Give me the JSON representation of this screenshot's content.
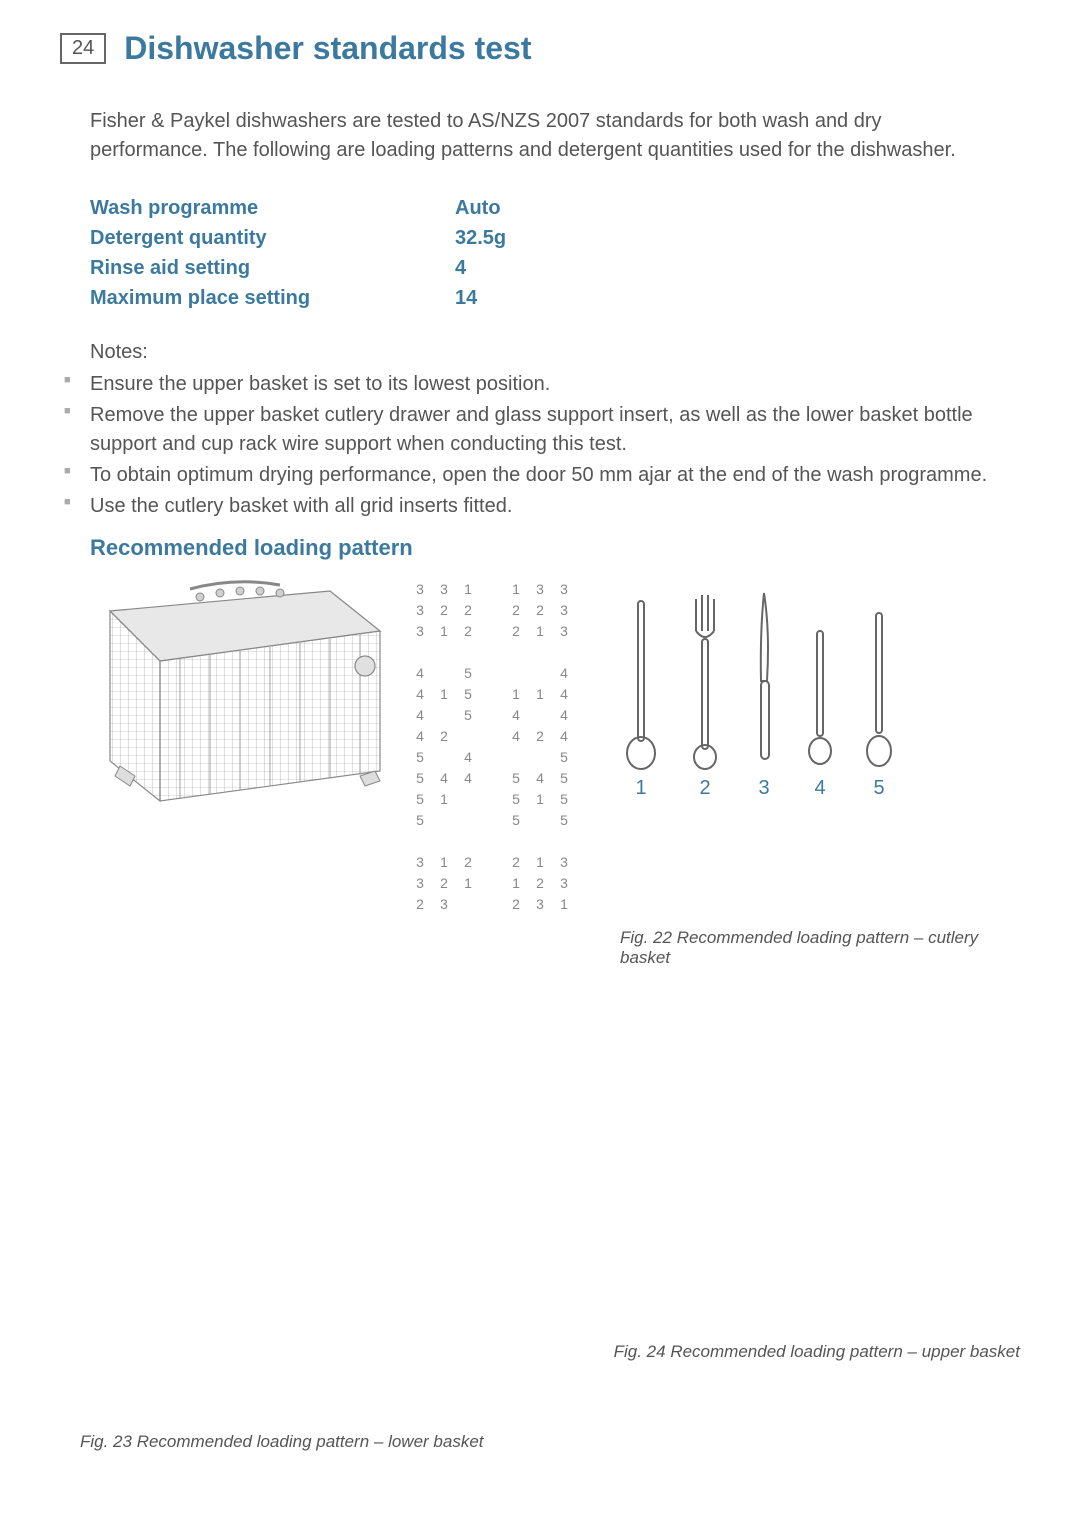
{
  "page_number": "24",
  "title": "Dishwasher standards test",
  "intro": "Fisher & Paykel dishwashers are tested to AS/NZS 2007 standards for both wash and dry performance. The following are loading patterns and detergent quantities used for the dishwasher.",
  "settings": [
    {
      "label": "Wash programme",
      "value": "Auto"
    },
    {
      "label": "Detergent quantity",
      "value": "32.5g"
    },
    {
      "label": "Rinse aid setting",
      "value": "4"
    },
    {
      "label": "Maximum place setting",
      "value": "14"
    }
  ],
  "notes_title": "Notes:",
  "notes": [
    "Ensure the upper basket is set to its lowest position.",
    "Remove the upper basket cutlery drawer and glass support insert, as well as the lower basket bottle support and cup rack wire support when conducting this test.",
    "To obtain optimum drying performance, open the door 50 mm ajar at the end of the wash programme.",
    "Use the cutlery basket with all grid inserts fitted."
  ],
  "subheading": "Recommended loading pattern",
  "grid_rows": [
    [
      "3",
      "3",
      "1",
      "",
      "1",
      "3",
      "3"
    ],
    [
      "3",
      "2",
      "2",
      "",
      "2",
      "2",
      "3"
    ],
    [
      "3",
      "1",
      "2",
      "",
      "2",
      "1",
      "3"
    ],
    "spacer",
    [
      "4",
      "",
      "5",
      "",
      "",
      "",
      "4"
    ],
    [
      "4",
      "1",
      "5",
      "",
      "1",
      "1",
      "4"
    ],
    [
      "4",
      "",
      "5",
      "",
      "4",
      "",
      "4"
    ],
    [
      "4",
      "2",
      "",
      "",
      "4",
      "2",
      "4"
    ],
    [
      "5",
      "",
      "4",
      "",
      "",
      "",
      "5"
    ],
    [
      "5",
      "4",
      "4",
      "",
      "5",
      "4",
      "5"
    ],
    [
      "5",
      "1",
      "",
      "",
      "5",
      "1",
      "5"
    ],
    [
      "5",
      "",
      "",
      "",
      "5",
      "",
      "5"
    ],
    "spacer",
    [
      "3",
      "1",
      "2",
      "",
      "2",
      "1",
      "3"
    ],
    [
      "3",
      "2",
      "1",
      "",
      "1",
      "2",
      "3"
    ],
    [
      "2",
      "3",
      "",
      "",
      "2",
      "3",
      "1"
    ]
  ],
  "cutlery_labels": [
    "1",
    "2",
    "3",
    "4",
    "5"
  ],
  "cutlery_types": [
    "spoon",
    "fork",
    "knife",
    "teaspoon",
    "dessert-spoon"
  ],
  "captions": {
    "fig22": "Fig. 22 Recommended loading pattern – cutlery basket",
    "fig23": "Fig. 23 Recommended loading pattern – lower basket",
    "fig24": "Fig. 24 Recommended loading pattern – upper basket"
  },
  "colors": {
    "accent": "#3b7a9e",
    "text": "#555555",
    "grid_num": "#888888",
    "bullet": "#aaaaaa"
  }
}
